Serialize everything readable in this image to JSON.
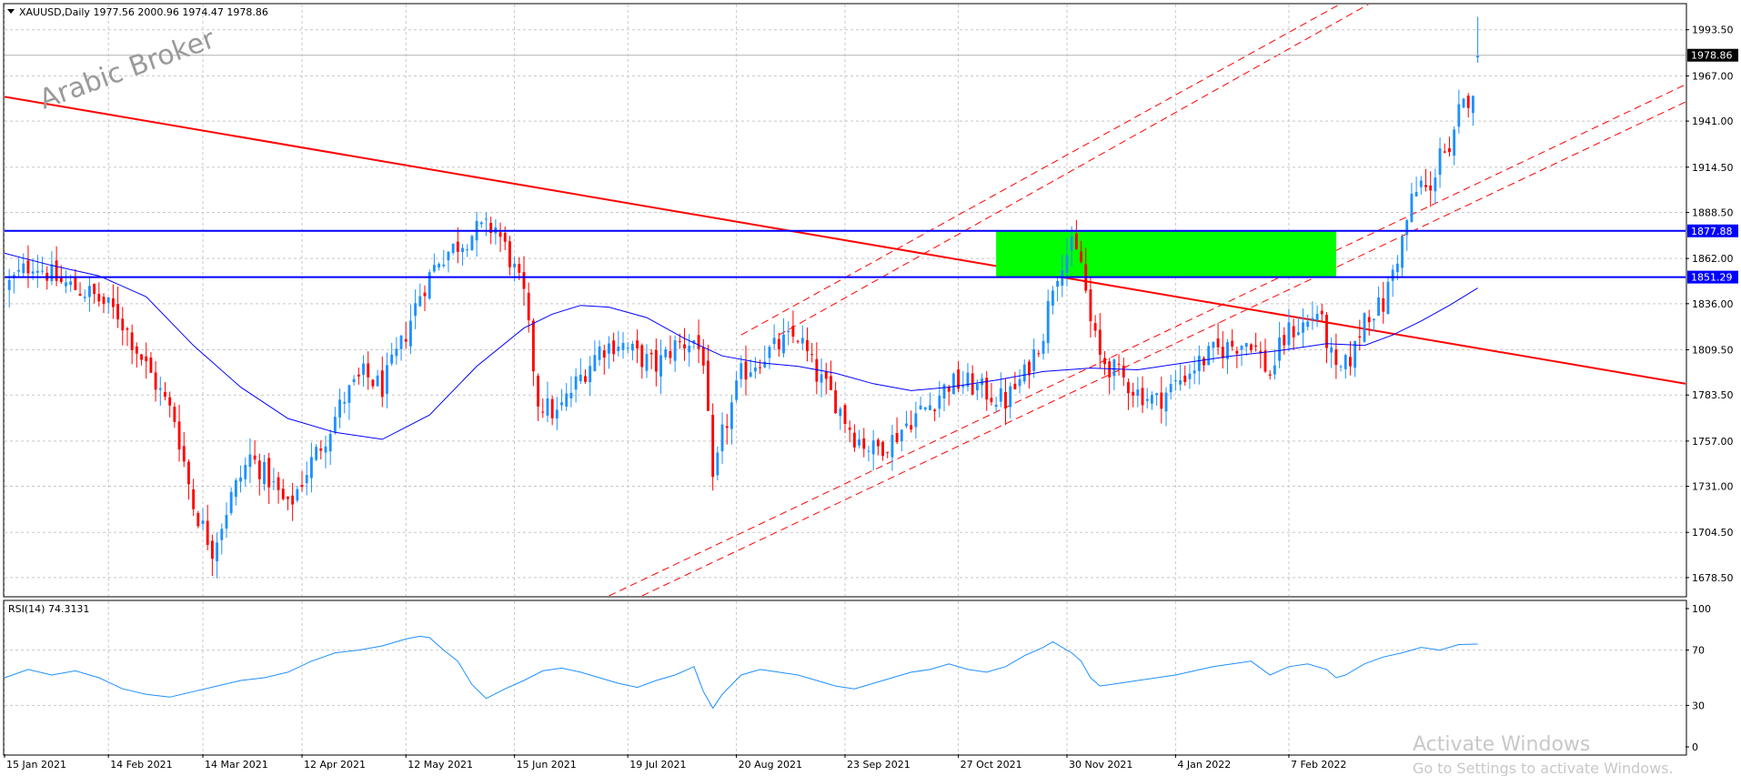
{
  "header": {
    "menu_icon": "triangle-down-icon",
    "symbol_info": "XAUUSD,Daily  1977.56 2000.96 1974.47 1978.86"
  },
  "watermark": {
    "text": "Arabic Broker"
  },
  "windows_notice": {
    "title": "Activate Windows",
    "subtitle": "Go to Settings to activate Windows."
  },
  "rsi_panel": {
    "label": "RSI(14) 74.3131"
  },
  "colors": {
    "bull": "#1e90ff",
    "bear": "#ff0000",
    "ma": "#0000ff",
    "hline": "#0000ff",
    "zone": "#00ff00",
    "trend": "#ff0000",
    "channel": "#ff0000",
    "rsi": "#1e90ff",
    "price_tag_bg": "#000000",
    "level_tag_bg": "#0000ff"
  },
  "chart_data": [
    {
      "type": "candlestick",
      "title": "XAUUSD,Daily",
      "ohlc_last": {
        "open": 1977.56,
        "high": 2000.96,
        "low": 1974.47,
        "close": 1978.86
      },
      "last_price": "1978.86",
      "y_ticks": [
        "1993.50",
        "1967.00",
        "1941.00",
        "1914.50",
        "1888.50",
        "1862.00",
        "1836.00",
        "1809.50",
        "1783.50",
        "1757.00",
        "1731.00",
        "1704.50",
        "1678.50"
      ],
      "ylim": [
        1668,
        2008
      ],
      "x_ticks": [
        "15 Jan 2021",
        "14 Feb 2021",
        "14 Mar 2021",
        "12 Apr 2021",
        "12 May 2021",
        "15 Jun 2021",
        "19 Jul 2021",
        "20 Aug 2021",
        "23 Sep 2021",
        "27 Oct 2021",
        "30 Nov 2021",
        "4 Jan 2022",
        "7 Feb 2022"
      ],
      "x_tick_index": [
        0,
        22,
        42,
        63,
        85,
        108,
        132,
        155,
        178,
        202,
        225,
        248,
        272
      ],
      "xlim": [
        0,
        356
      ],
      "close_path": [
        [
          0,
          1845
        ],
        [
          6,
          1860
        ],
        [
          12,
          1848
        ],
        [
          18,
          1842
        ],
        [
          24,
          1830
        ],
        [
          30,
          1800
        ],
        [
          36,
          1770
        ],
        [
          40,
          1720
        ],
        [
          44,
          1695
        ],
        [
          48,
          1725
        ],
        [
          52,
          1748
        ],
        [
          56,
          1735
        ],
        [
          60,
          1718
        ],
        [
          64,
          1740
        ],
        [
          68,
          1760
        ],
        [
          72,
          1782
        ],
        [
          76,
          1795
        ],
        [
          80,
          1788
        ],
        [
          84,
          1812
        ],
        [
          88,
          1842
        ],
        [
          92,
          1862
        ],
        [
          96,
          1870
        ],
        [
          100,
          1878
        ],
        [
          104,
          1880
        ],
        [
          107,
          1862
        ],
        [
          110,
          1840
        ],
        [
          113,
          1780
        ],
        [
          117,
          1772
        ],
        [
          121,
          1790
        ],
        [
          126,
          1810
        ],
        [
          130,
          1814
        ],
        [
          134,
          1806
        ],
        [
          138,
          1800
        ],
        [
          142,
          1812
        ],
        [
          146,
          1815
        ],
        [
          148,
          1805
        ],
        [
          150,
          1730
        ],
        [
          152,
          1760
        ],
        [
          156,
          1795
        ],
        [
          160,
          1805
        ],
        [
          164,
          1812
        ],
        [
          168,
          1818
        ],
        [
          172,
          1795
        ],
        [
          176,
          1780
        ],
        [
          180,
          1760
        ],
        [
          184,
          1752
        ],
        [
          188,
          1758
        ],
        [
          192,
          1770
        ],
        [
          196,
          1778
        ],
        [
          200,
          1790
        ],
        [
          204,
          1790
        ],
        [
          208,
          1785
        ],
        [
          212,
          1780
        ],
        [
          216,
          1795
        ],
        [
          220,
          1820
        ],
        [
          222,
          1848
        ],
        [
          224,
          1862
        ],
        [
          226,
          1868
        ],
        [
          228,
          1860
        ],
        [
          230,
          1825
        ],
        [
          232,
          1805
        ],
        [
          236,
          1795
        ],
        [
          240,
          1785
        ],
        [
          244,
          1780
        ],
        [
          248,
          1790
        ],
        [
          252,
          1800
        ],
        [
          256,
          1808
        ],
        [
          260,
          1812
        ],
        [
          264,
          1815
        ],
        [
          268,
          1795
        ],
        [
          270,
          1810
        ],
        [
          272,
          1820
        ],
        [
          276,
          1825
        ],
        [
          278,
          1832
        ],
        [
          280,
          1815
        ],
        [
          282,
          1795
        ],
        [
          284,
          1800
        ],
        [
          286,
          1810
        ],
        [
          288,
          1830
        ],
        [
          292,
          1835
        ],
        [
          294,
          1855
        ],
        [
          296,
          1872
        ],
        [
          298,
          1895
        ],
        [
          300,
          1905
        ],
        [
          302,
          1898
        ],
        [
          304,
          1928
        ],
        [
          306,
          1918
        ],
        [
          308,
          1945
        ],
        [
          311,
          1960
        ],
        [
          312,
          1978.86
        ]
      ],
      "ma": [
        [
          0,
          1865
        ],
        [
          10,
          1858
        ],
        [
          20,
          1852
        ],
        [
          30,
          1840
        ],
        [
          40,
          1812
        ],
        [
          50,
          1788
        ],
        [
          60,
          1770
        ],
        [
          70,
          1762
        ],
        [
          80,
          1758
        ],
        [
          90,
          1772
        ],
        [
          100,
          1800
        ],
        [
          110,
          1822
        ],
        [
          116,
          1830
        ],
        [
          122,
          1835
        ],
        [
          128,
          1834
        ],
        [
          136,
          1828
        ],
        [
          144,
          1816
        ],
        [
          152,
          1806
        ],
        [
          160,
          1802
        ],
        [
          168,
          1800
        ],
        [
          176,
          1796
        ],
        [
          184,
          1790
        ],
        [
          192,
          1786
        ],
        [
          200,
          1788
        ],
        [
          210,
          1792
        ],
        [
          220,
          1797
        ],
        [
          230,
          1799
        ],
        [
          240,
          1798
        ],
        [
          250,
          1802
        ],
        [
          260,
          1806
        ],
        [
          270,
          1809
        ],
        [
          280,
          1813
        ],
        [
          288,
          1812
        ],
        [
          294,
          1818
        ],
        [
          300,
          1826
        ],
        [
          306,
          1835
        ],
        [
          312,
          1845
        ]
      ],
      "levels": [
        {
          "price": 1877.88,
          "label": "1877.88"
        },
        {
          "price": 1851.29,
          "label": "1851.29"
        }
      ],
      "zone": {
        "x_start": 210,
        "x_end": 282,
        "price_top": 1877.88,
        "price_bottom": 1851.29
      },
      "trendline": [
        [
          0,
          1955
        ],
        [
          356,
          1790
        ]
      ],
      "channel_lines": [
        {
          "points": [
            [
              128,
              1668
            ],
            [
              356,
              1962
            ]
          ]
        },
        {
          "points": [
            [
              135,
              1668
            ],
            [
              356,
              1952
            ]
          ]
        },
        {
          "points": [
            [
              156,
              1818
            ],
            [
              288,
              2016
            ]
          ]
        },
        {
          "points": [
            [
              164,
              1818
            ],
            [
              294,
              2016
            ]
          ]
        }
      ]
    },
    {
      "type": "line",
      "title": "RSI(14) 74.3131",
      "y_ticks": [
        "100",
        "70",
        "30",
        "0"
      ],
      "ylim": [
        0,
        100
      ],
      "xlim": [
        0,
        356
      ],
      "values": [
        [
          0,
          50
        ],
        [
          5,
          56
        ],
        [
          10,
          52
        ],
        [
          15,
          55
        ],
        [
          20,
          50
        ],
        [
          25,
          42
        ],
        [
          30,
          38
        ],
        [
          35,
          36
        ],
        [
          40,
          40
        ],
        [
          45,
          44
        ],
        [
          50,
          48
        ],
        [
          55,
          50
        ],
        [
          60,
          54
        ],
        [
          65,
          62
        ],
        [
          70,
          68
        ],
        [
          75,
          70
        ],
        [
          80,
          73
        ],
        [
          85,
          78
        ],
        [
          88,
          80
        ],
        [
          90,
          79
        ],
        [
          93,
          70
        ],
        [
          96,
          62
        ],
        [
          99,
          45
        ],
        [
          102,
          35
        ],
        [
          106,
          42
        ],
        [
          110,
          48
        ],
        [
          114,
          55
        ],
        [
          118,
          57
        ],
        [
          122,
          54
        ],
        [
          126,
          50
        ],
        [
          130,
          46
        ],
        [
          134,
          43
        ],
        [
          138,
          48
        ],
        [
          142,
          52
        ],
        [
          146,
          58
        ],
        [
          148,
          40
        ],
        [
          150,
          28
        ],
        [
          152,
          38
        ],
        [
          156,
          52
        ],
        [
          160,
          56
        ],
        [
          164,
          54
        ],
        [
          168,
          52
        ],
        [
          172,
          48
        ],
        [
          176,
          44
        ],
        [
          180,
          42
        ],
        [
          184,
          46
        ],
        [
          188,
          50
        ],
        [
          192,
          54
        ],
        [
          196,
          56
        ],
        [
          200,
          60
        ],
        [
          204,
          56
        ],
        [
          208,
          54
        ],
        [
          212,
          58
        ],
        [
          216,
          66
        ],
        [
          220,
          72
        ],
        [
          222,
          76
        ],
        [
          224,
          72
        ],
        [
          226,
          68
        ],
        [
          228,
          62
        ],
        [
          230,
          50
        ],
        [
          232,
          44
        ],
        [
          236,
          46
        ],
        [
          240,
          48
        ],
        [
          244,
          50
        ],
        [
          248,
          52
        ],
        [
          252,
          55
        ],
        [
          256,
          58
        ],
        [
          260,
          60
        ],
        [
          264,
          62
        ],
        [
          268,
          52
        ],
        [
          272,
          58
        ],
        [
          276,
          60
        ],
        [
          280,
          56
        ],
        [
          282,
          50
        ],
        [
          284,
          52
        ],
        [
          288,
          60
        ],
        [
          292,
          65
        ],
        [
          296,
          68
        ],
        [
          300,
          72
        ],
        [
          304,
          70
        ],
        [
          308,
          74
        ],
        [
          312,
          74.3131
        ]
      ]
    }
  ]
}
